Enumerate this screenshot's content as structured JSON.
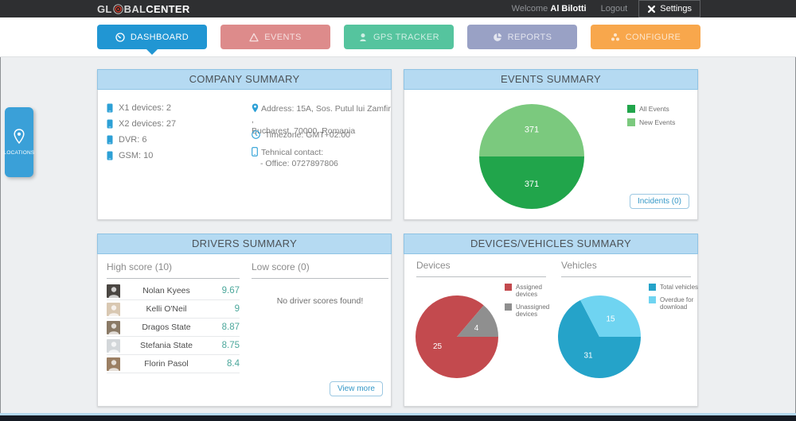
{
  "topbar": {
    "logo_part1": "GL",
    "logo_part2": "BAL",
    "logo_part3": "CENTER",
    "welcome_label": "Welcome",
    "username": "Al Bilotti",
    "logout_label": "Logout",
    "settings_label": "Settings"
  },
  "nav": {
    "items": [
      {
        "label": "DASHBOARD",
        "color": "#2196d3",
        "active": true
      },
      {
        "label": "EVENTS",
        "color": "#dd8b8b",
        "active": false
      },
      {
        "label": "GPS TRACKER",
        "color": "#55c49e",
        "active": false
      },
      {
        "label": "REPORTS",
        "color": "#99a1c5",
        "active": false
      },
      {
        "label": "CONFIGURE",
        "color": "#f8a74c",
        "active": false
      }
    ]
  },
  "locations_tab": {
    "label": "LOCATIONS"
  },
  "company": {
    "title": "COMPANY SUMMARY",
    "device_counts": [
      "X1 devices: 2",
      "X2 devices: 27",
      "DVR: 6",
      "GSM: 10"
    ],
    "address_line1": "Address: 15A, Sos. Putul lui Zamfir ,",
    "address_line2": "Bucharest, 70000, Romania",
    "timezone": "Timezone: GMT+02:00",
    "contact_label": "Tehnical contact:",
    "contact_office": "- Office: 0727897806"
  },
  "events": {
    "title": "EVENTS SUMMARY",
    "incidents_button": "Incidents (0)"
  },
  "drivers": {
    "title": "DRIVERS SUMMARY",
    "high_score_label": "High score (10)",
    "low_score_label": "Low score (0)",
    "empty_message": "No driver scores found!",
    "view_more_button": "View more",
    "high_scores": [
      {
        "name": "Nolan Kyees",
        "score": "9.67"
      },
      {
        "name": "Kelli O'Neil",
        "score": "9"
      },
      {
        "name": "Dragos State",
        "score": "8.87"
      },
      {
        "name": "Stefania State",
        "score": "8.75"
      },
      {
        "name": "Florin Pasol",
        "score": "8.4"
      }
    ]
  },
  "devices_vehicles": {
    "title": "DEVICES/VEHICLES SUMMARY",
    "devices_label": "Devices",
    "vehicles_label": "Vehicles"
  },
  "chart_data": [
    {
      "type": "pie",
      "title": "Events Summary",
      "labels": [
        "All Events",
        "New Events"
      ],
      "values": [
        371,
        371
      ],
      "colors": [
        "#21a54b",
        "#7bc97e"
      ],
      "legend_position": "right",
      "start_angle": "3-oclock-clockwise"
    },
    {
      "type": "pie",
      "title": "Devices",
      "labels": [
        "Assigned devices",
        "Unassigned devices"
      ],
      "values": [
        25,
        4
      ],
      "colors": [
        "#c34a4e",
        "#8f8f8f"
      ],
      "legend_position": "right",
      "start_angle": "3-oclock-clockwise"
    },
    {
      "type": "pie",
      "title": "Vehicles",
      "labels": [
        "Total vehicles",
        "Overdue for download"
      ],
      "values": [
        31,
        15
      ],
      "colors": [
        "#25a3c9",
        "#6fd4f1"
      ],
      "legend_position": "right",
      "start_angle": "3-oclock-clockwise"
    }
  ]
}
